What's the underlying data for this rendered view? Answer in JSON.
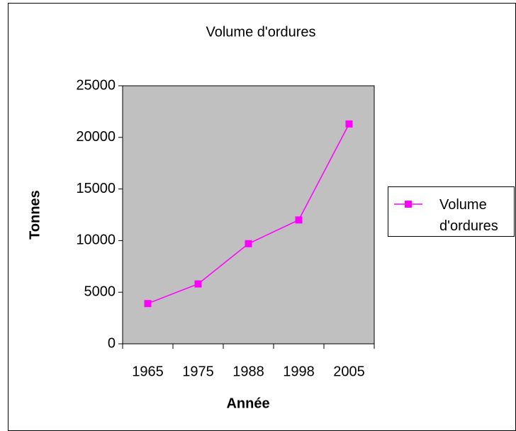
{
  "chart_data": {
    "type": "line",
    "title": "Volume d'ordures",
    "x_label": "Année",
    "y_label": "Tonnes",
    "categories": [
      "1965",
      "1975",
      "1988",
      "1998",
      "2005"
    ],
    "series": [
      {
        "name": "Volume d'ordures",
        "color": "#ff00ff",
        "values": [
          3900,
          5800,
          9700,
          12000,
          21300
        ]
      }
    ],
    "ylim": [
      0,
      25000
    ],
    "yticks": [
      0,
      5000,
      10000,
      15000,
      20000,
      25000
    ],
    "grid": false,
    "legend": "right",
    "plot_background": "#c0c0c0"
  }
}
